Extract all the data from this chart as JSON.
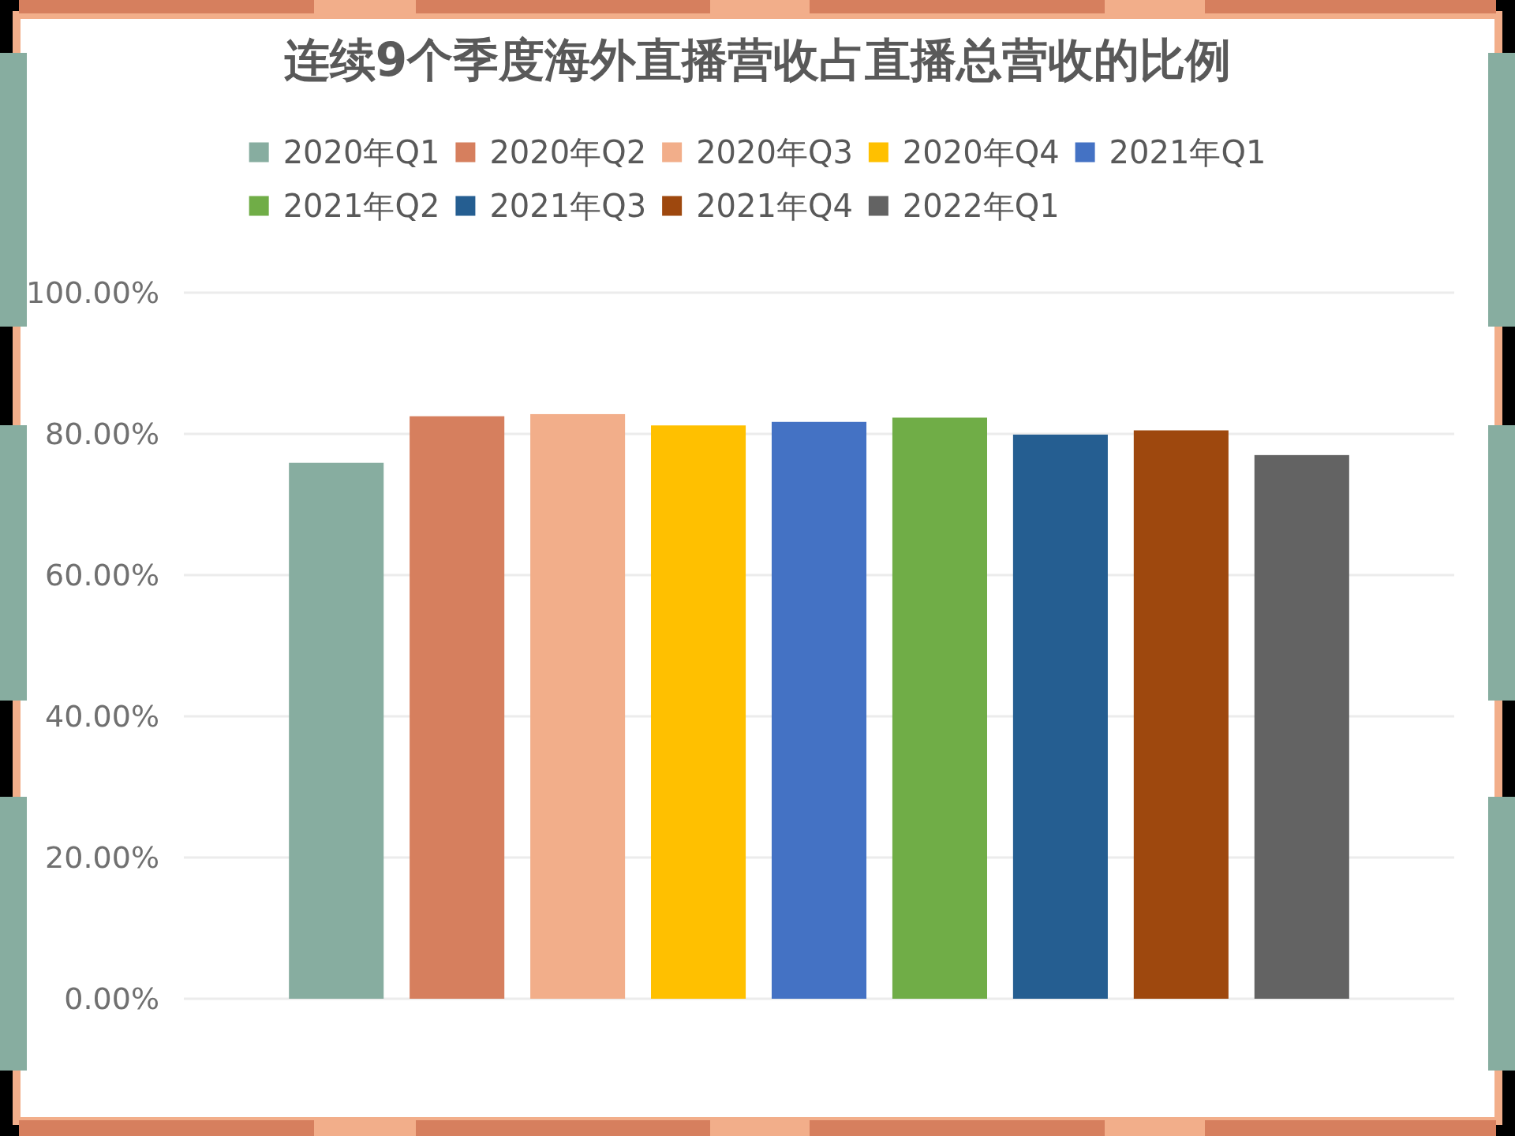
{
  "chart_data": {
    "type": "bar",
    "title": "连续9个季度海外直播营收占直播总营收的比例",
    "categories": [
      null
    ],
    "series": [
      {
        "name": "2020年Q1",
        "color": "#87ada0",
        "values": [
          75.9
        ]
      },
      {
        "name": "2020年Q2",
        "color": "#d67f5e",
        "values": [
          82.5
        ]
      },
      {
        "name": "2020年Q3",
        "color": "#f2ae8a",
        "values": [
          82.8
        ]
      },
      {
        "name": "2020年Q4",
        "color": "#ffc000",
        "values": [
          81.2
        ]
      },
      {
        "name": "2021年Q1",
        "color": "#4472c4",
        "values": [
          81.7
        ]
      },
      {
        "name": "2021年Q2",
        "color": "#70ad47",
        "values": [
          82.3
        ]
      },
      {
        "name": "2021年Q3",
        "color": "#255e91",
        "values": [
          79.9
        ]
      },
      {
        "name": "2021年Q4",
        "color": "#9e480e",
        "values": [
          80.5
        ]
      },
      {
        "name": "2022年Q1",
        "color": "#636363",
        "values": [
          77.0
        ]
      }
    ],
    "ylim": [
      0,
      100
    ],
    "yticks": [
      {
        "value": 0,
        "label": "0.00%"
      },
      {
        "value": 20,
        "label": "20.00%"
      },
      {
        "value": 40,
        "label": "40.00%"
      },
      {
        "value": 60,
        "label": "60.00%"
      },
      {
        "value": 80,
        "label": "80.00%"
      },
      {
        "value": 100,
        "label": "100.00%"
      }
    ],
    "grid": "y",
    "legend": "top"
  }
}
